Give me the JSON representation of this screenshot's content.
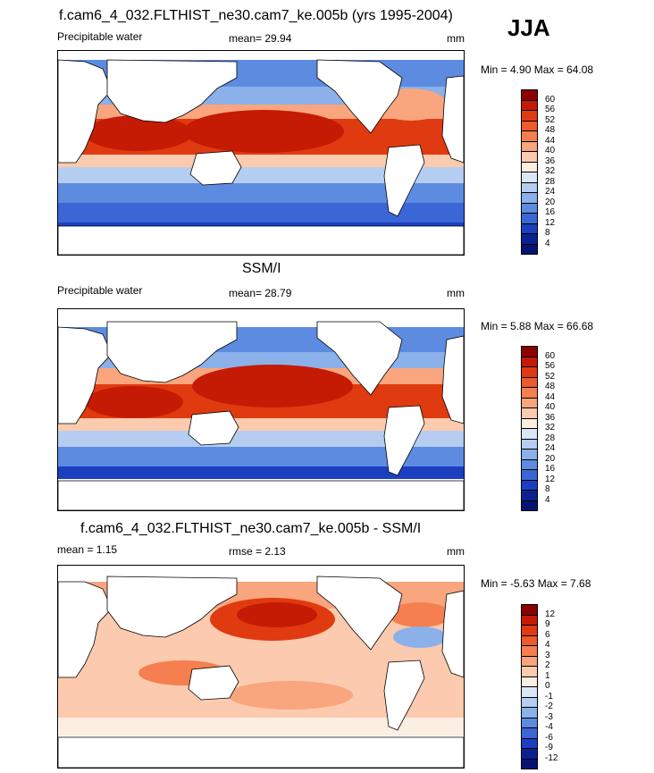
{
  "season": "JJA",
  "panels": [
    {
      "title": "f.cam6_4_032.FLTHIST_ne30.cam7_ke.005b (yrs 1995-2004)",
      "left_label": "Precipitable water",
      "mean_text": "mean=  29.94",
      "units": "mm",
      "minmax": "Min =   4.90 Max =  64.08",
      "colorbar": {
        "labels": [
          "60",
          "56",
          "52",
          "48",
          "44",
          "40",
          "36",
          "32",
          "28",
          "24",
          "20",
          "16",
          "12",
          "8",
          "4"
        ],
        "colors": [
          "#8c0000",
          "#c51a04",
          "#e03a10",
          "#ee5a2a",
          "#f57f4e",
          "#f9a57e",
          "#fccaae",
          "#fdeee2",
          "#dbe6f6",
          "#b4cdf0",
          "#8bb0ea",
          "#5d8be0",
          "#3a66d6",
          "#1c3fc2",
          "#0a2290",
          "#061374"
        ]
      }
    },
    {
      "title": "SSM/I",
      "left_label": "Precipitable water",
      "mean_text": "mean=  28.79",
      "units": "mm",
      "minmax": "Min =   5.88 Max =  66.68",
      "colorbar": {
        "labels": [
          "60",
          "56",
          "52",
          "48",
          "44",
          "40",
          "36",
          "32",
          "28",
          "24",
          "20",
          "16",
          "12",
          "8",
          "4"
        ],
        "colors": [
          "#8c0000",
          "#c51a04",
          "#e03a10",
          "#ee5a2a",
          "#f57f4e",
          "#f9a57e",
          "#fccaae",
          "#fdeee2",
          "#dbe6f6",
          "#b4cdf0",
          "#8bb0ea",
          "#5d8be0",
          "#3a66d6",
          "#1c3fc2",
          "#0a2290",
          "#061374"
        ]
      }
    },
    {
      "title": "f.cam6_4_032.FLTHIST_ne30.cam7_ke.005b - SSM/I",
      "left_label": "mean =   1.15",
      "mean_text": "rmse =   2.13",
      "units": "mm",
      "minmax": "Min =  -5.63 Max =   7.68",
      "colorbar": {
        "labels": [
          "12",
          "9",
          "6",
          "4",
          "3",
          "2",
          "1",
          "0",
          "-1",
          "-2",
          "-3",
          "-4",
          "-6",
          "-9",
          "-12"
        ],
        "colors": [
          "#8c0000",
          "#c51a04",
          "#e03a10",
          "#ee5a2a",
          "#f57f4e",
          "#f9a57e",
          "#fccaae",
          "#fdeee2",
          "#dbe6f6",
          "#b4cdf0",
          "#8bb0ea",
          "#5d8be0",
          "#3a66d6",
          "#1c3fc2",
          "#0a2290",
          "#061374"
        ]
      }
    }
  ],
  "chart_data": [
    {
      "type": "heatmap",
      "title": "f.cam6_4_032.FLTHIST_ne30.cam7_ke.005b (yrs 1995-2004)",
      "variable": "Precipitable water",
      "units": "mm",
      "mean": 29.94,
      "min": 4.9,
      "max": 64.08,
      "contour_levels": [
        4,
        8,
        12,
        16,
        20,
        24,
        28,
        32,
        36,
        40,
        44,
        48,
        52,
        56,
        60
      ],
      "lon_range": [
        0,
        360
      ],
      "lat_range": [
        -90,
        90
      ]
    },
    {
      "type": "heatmap",
      "title": "SSM/I",
      "variable": "Precipitable water",
      "units": "mm",
      "mean": 28.79,
      "min": 5.88,
      "max": 66.68,
      "contour_levels": [
        4,
        8,
        12,
        16,
        20,
        24,
        28,
        32,
        36,
        40,
        44,
        48,
        52,
        56,
        60
      ],
      "lon_range": [
        0,
        360
      ],
      "lat_range": [
        -90,
        90
      ]
    },
    {
      "type": "heatmap",
      "title": "f.cam6_4_032.FLTHIST_ne30.cam7_ke.005b - SSM/I",
      "units": "mm",
      "mean": 1.15,
      "rmse": 2.13,
      "min": -5.63,
      "max": 7.68,
      "contour_levels": [
        -12,
        -9,
        -6,
        -4,
        -3,
        -2,
        -1,
        0,
        1,
        2,
        3,
        4,
        6,
        9,
        12
      ],
      "lon_range": [
        0,
        360
      ],
      "lat_range": [
        -90,
        90
      ]
    }
  ]
}
